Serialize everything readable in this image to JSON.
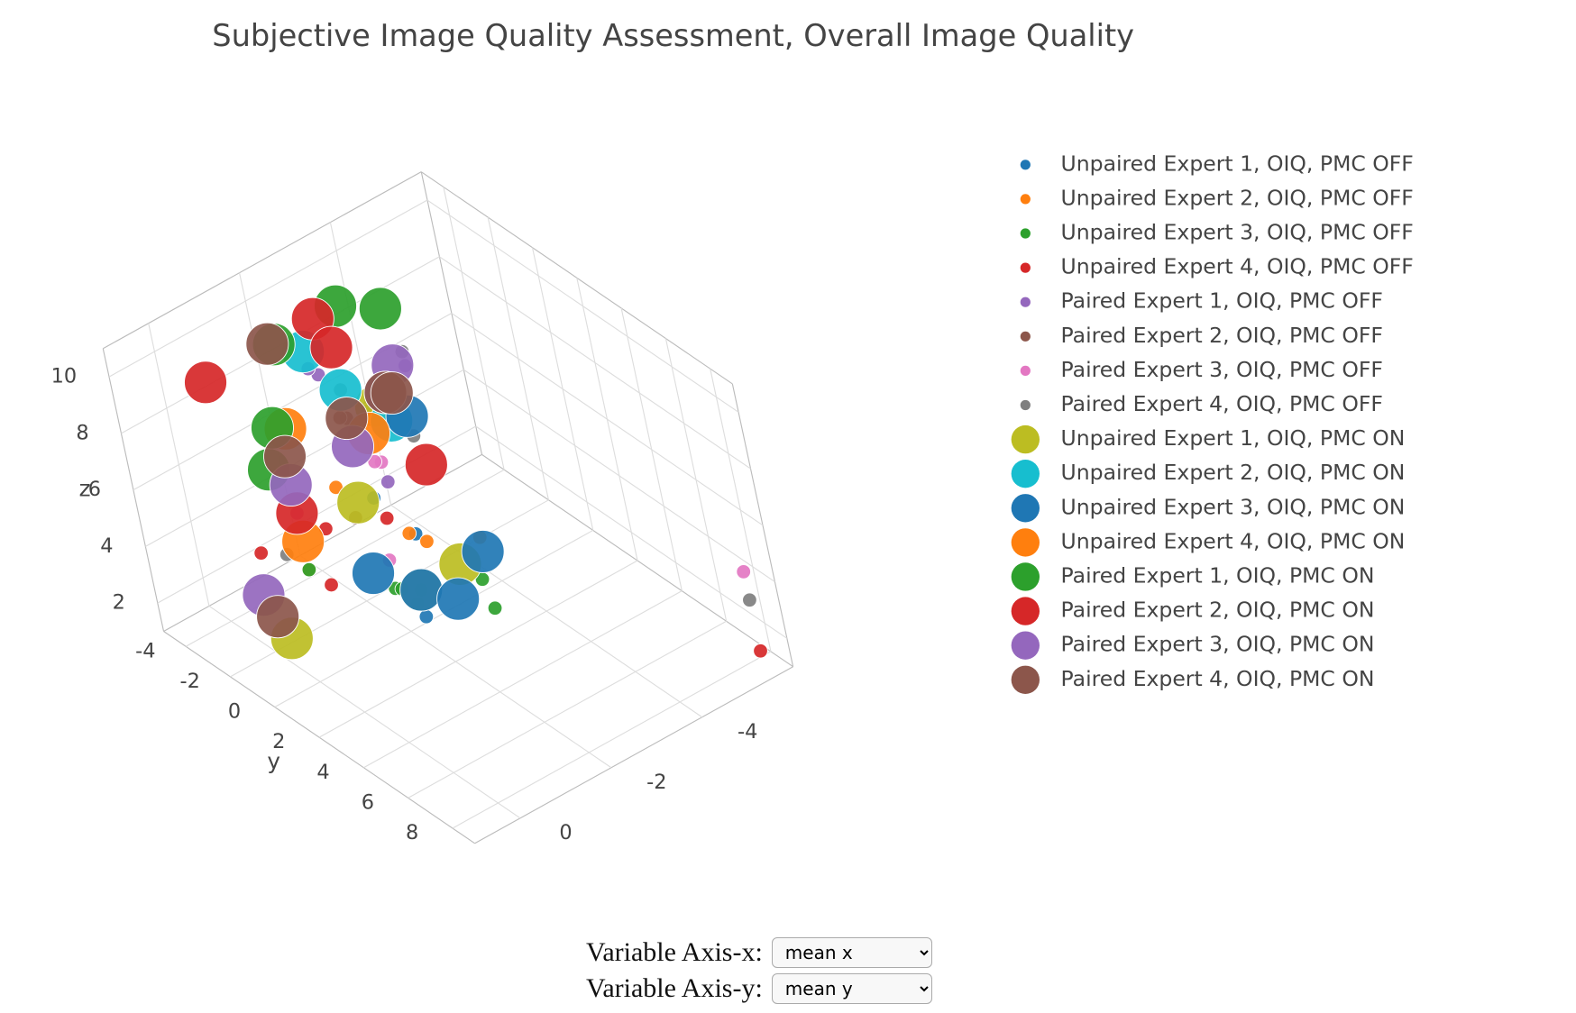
{
  "chart_data": {
    "type": "scatter3d",
    "title": "Subjective Image Quality Assessment, Overall Image Quality",
    "y_label": "y",
    "z_label": "z",
    "xlim": [
      -6,
      1
    ],
    "ylim": [
      -5,
      9
    ],
    "zlim": [
      1,
      11
    ],
    "xticks": [
      -4,
      -2,
      0
    ],
    "yticks": [
      -4,
      -2,
      0,
      2,
      4,
      6,
      8
    ],
    "zticks": [
      2,
      4,
      6,
      8,
      10
    ],
    "grid": true,
    "series": [
      {
        "name": "Unpaired Expert 1, OIQ, PMC OFF",
        "color": "#1f77b4",
        "marker_size": 14,
        "x": [
          -2,
          -2.5,
          -1.5,
          -2.2,
          -1.8
        ],
        "y": [
          1,
          0,
          2,
          -1,
          1.5
        ],
        "z": [
          3,
          4,
          3.5,
          5,
          2.5
        ]
      },
      {
        "name": "Unpaired Expert 2, OIQ, PMC OFF",
        "color": "#ff7f0e",
        "marker_size": 14,
        "x": [
          -2.5,
          -1,
          -2,
          -3,
          -1.5
        ],
        "y": [
          0.5,
          -2,
          1,
          2,
          -1
        ],
        "z": [
          4,
          3,
          5,
          4.5,
          6
        ]
      },
      {
        "name": "Unpaired Expert 3, OIQ, PMC OFF",
        "color": "#2ca02c",
        "marker_size": 14,
        "x": [
          -3,
          -1.5,
          -2.5,
          -1,
          -2
        ],
        "y": [
          2,
          1,
          3,
          -2,
          0
        ],
        "z": [
          2,
          3.5,
          4,
          3,
          2.5
        ]
      },
      {
        "name": "Unpaired Expert 4, OIQ, PMC OFF",
        "color": "#d62728",
        "marker_size": 14,
        "x": [
          -1,
          -1.5,
          -5.8,
          -2,
          -0.5
        ],
        "y": [
          -1,
          -2,
          8,
          0,
          -3
        ],
        "z": [
          3,
          4,
          1.2,
          5,
          3.5
        ]
      },
      {
        "name": "Paired Expert 1, OIQ, PMC OFF",
        "color": "#9467bd",
        "marker_size": 14,
        "x": [
          -2,
          -2.5,
          -3,
          -1.8,
          -2.2
        ],
        "y": [
          -2,
          -1,
          0,
          1,
          -3
        ],
        "z": [
          9,
          8,
          9.5,
          7,
          8.5
        ]
      },
      {
        "name": "Paired Expert 2, OIQ, PMC OFF",
        "color": "#8c564b",
        "marker_size": 14,
        "x": [
          -2,
          -1.5,
          -2.8,
          -2.3,
          -1.2
        ],
        "y": [
          -1,
          0,
          -2,
          1,
          0.5
        ],
        "z": [
          8,
          9,
          7,
          10,
          6
        ]
      },
      {
        "name": "Paired Expert 3, OIQ, PMC OFF",
        "color": "#e377c2",
        "marker_size": 14,
        "x": [
          -2.5,
          -1,
          -5.8,
          -2,
          -1.5
        ],
        "y": [
          -1,
          -2,
          8,
          0,
          1
        ],
        "z": [
          6,
          5,
          4,
          7,
          4.5
        ]
      },
      {
        "name": "Paired Expert 4, OIQ, PMC OFF",
        "color": "#7f7f7f",
        "marker_size": 14,
        "x": [
          -3,
          -2,
          -5.8,
          -1,
          -2.5
        ],
        "y": [
          0,
          -1,
          8,
          -3,
          1
        ],
        "z": [
          10,
          9,
          3,
          3,
          8
        ]
      },
      {
        "name": "Unpaired Expert 1, OIQ, PMC ON",
        "color": "#bcbd22",
        "marker_size": 42,
        "x": [
          -2,
          0,
          -1.5,
          -3,
          -2.5
        ],
        "y": [
          1,
          -1,
          0,
          -2,
          2
        ],
        "z": [
          3,
          2,
          6,
          7,
          4
        ]
      },
      {
        "name": "Unpaired Expert 2, OIQ, PMC ON",
        "color": "#17becf",
        "marker_size": 42,
        "x": [
          -2,
          -2.5,
          -1.8
        ],
        "y": [
          -1,
          0,
          -2
        ],
        "z": [
          9,
          8,
          10
        ]
      },
      {
        "name": "Unpaired Expert 3, OIQ, PMC ON",
        "color": "#1f77b4",
        "marker_size": 42,
        "x": [
          -2,
          -3,
          -1.5,
          -2.5,
          -3.2
        ],
        "y": [
          1,
          2,
          0,
          1.5,
          -1
        ],
        "z": [
          3,
          4,
          3.5,
          2.5,
          7
        ]
      },
      {
        "name": "Unpaired Expert 4, OIQ, PMC ON",
        "color": "#ff7f0e",
        "marker_size": 42,
        "x": [
          -1.5,
          -2,
          -1
        ],
        "y": [
          -3,
          0,
          -2
        ],
        "z": [
          7,
          8,
          4
        ]
      },
      {
        "name": "Paired Expert 1, OIQ, PMC ON",
        "color": "#2ca02c",
        "marker_size": 42,
        "x": [
          -1,
          -3.5,
          -2,
          -0.5,
          -3
        ],
        "y": [
          -3,
          -2,
          -4,
          -1,
          -3
        ],
        "z": [
          6,
          10,
          9,
          9,
          10
        ]
      },
      {
        "name": "Paired Expert 2, OIQ, PMC ON",
        "color": "#d62728",
        "marker_size": 42,
        "x": [
          -1,
          -2.5,
          -0.5,
          -3,
          -2
        ],
        "y": [
          -2,
          -3,
          -4,
          0,
          -1
        ],
        "z": [
          5,
          10,
          9,
          6,
          10.5
        ]
      },
      {
        "name": "Paired Expert 3, OIQ, PMC ON",
        "color": "#9467bd",
        "marker_size": 42,
        "x": [
          0,
          -2,
          -1,
          -3.5,
          -2.5
        ],
        "y": [
          -2,
          -1,
          -2,
          -2,
          0
        ],
        "z": [
          3,
          7,
          6,
          8,
          9
        ]
      },
      {
        "name": "Paired Expert 4, OIQ, PMC ON",
        "color": "#8c564b",
        "marker_size": 42,
        "x": [
          0,
          -1,
          -2,
          -2.5,
          -1.5,
          -3
        ],
        "y": [
          -1.5,
          -2,
          -1,
          0,
          -3,
          -1
        ],
        "z": [
          2.5,
          7,
          8,
          9,
          10,
          8
        ]
      }
    ]
  },
  "controls": [
    {
      "label": "Variable Axis-x:",
      "value": "mean x"
    },
    {
      "label": "Variable Axis-y:",
      "value": "mean y"
    }
  ]
}
